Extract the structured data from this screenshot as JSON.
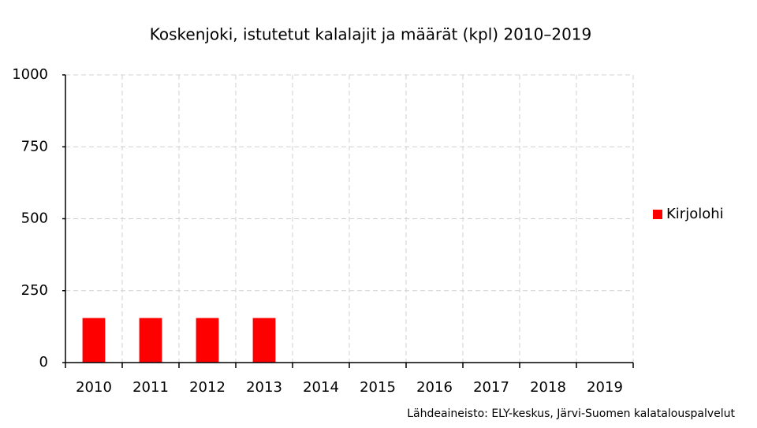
{
  "chart_data": {
    "type": "bar",
    "title": "Koskenjoki, istutetut kalalajit ja määrät (kpl) 2010–2019",
    "categories": [
      "2010",
      "2011",
      "2012",
      "2013",
      "2014",
      "2015",
      "2016",
      "2017",
      "2018",
      "2019"
    ],
    "series": [
      {
        "name": "Kirjolohi",
        "color": "#ff0000",
        "values": [
          155,
          155,
          155,
          155,
          0,
          0,
          0,
          0,
          0,
          0
        ]
      }
    ],
    "ylim": [
      0,
      1000
    ],
    "yticks": [
      0,
      250,
      500,
      750,
      1000
    ],
    "grid": true,
    "legend": "right",
    "source": "Lähdeaineisto: ELY-keskus, Järvi-Suomen kalatalouspalvelut"
  }
}
